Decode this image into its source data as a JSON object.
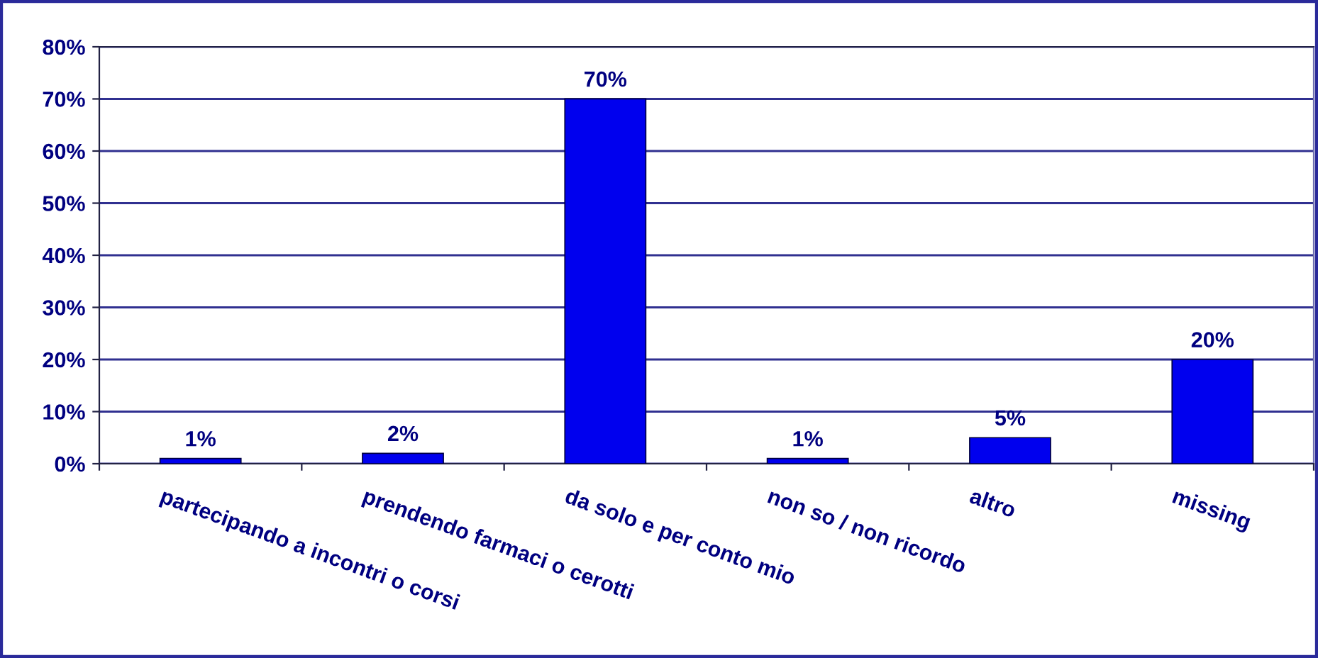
{
  "chart_data": {
    "type": "bar",
    "categories": [
      "partecipando a incontri o corsi",
      "prendendo farmaci o cerotti",
      "da solo e per conto mio",
      "non so / non ricordo",
      "altro",
      "missing"
    ],
    "values": [
      1,
      2,
      70,
      1,
      5,
      20
    ],
    "color": "#0000ee",
    "ylim": [
      0,
      80
    ],
    "yticks": [
      {
        "value": 0,
        "label": "0%"
      },
      {
        "value": 10,
        "label": "10%"
      },
      {
        "value": 20,
        "label": "20%"
      },
      {
        "value": 30,
        "label": "30%"
      },
      {
        "value": 40,
        "label": "40%"
      },
      {
        "value": 50,
        "label": "50%"
      },
      {
        "value": 60,
        "label": "60%"
      },
      {
        "value": 70,
        "label": "70%"
      },
      {
        "value": 80,
        "label": "80%"
      }
    ],
    "grid": "y",
    "value_labels": [
      "1%",
      "2%",
      "70%",
      "1%",
      "5%",
      "20%"
    ]
  }
}
